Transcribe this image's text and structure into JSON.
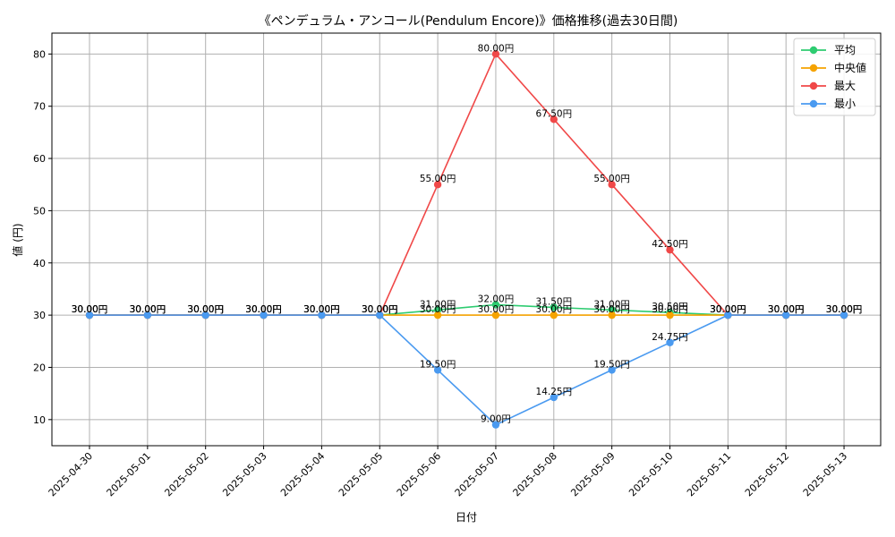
{
  "chart_data": {
    "type": "line",
    "title": "《ペンデュラム・アンコール(Pendulum Encore)》価格推移(過去30日間)",
    "xlabel": "日付",
    "ylabel": "値 (円)",
    "ylim": [
      5,
      84
    ],
    "yticks": [
      10,
      20,
      30,
      40,
      50,
      60,
      70,
      80
    ],
    "grid": true,
    "legend_position": "top-right",
    "value_suffix": "円",
    "categories": [
      "2025-04-30",
      "2025-05-01",
      "2025-05-02",
      "2025-05-03",
      "2025-05-04",
      "2025-05-05",
      "2025-05-06",
      "2025-05-07",
      "2025-05-08",
      "2025-05-09",
      "2025-05-10",
      "2025-05-11",
      "2025-05-12",
      "2025-05-13"
    ],
    "series": [
      {
        "name": "平均",
        "color": "#2ecc71",
        "values": [
          30,
          30,
          30,
          30,
          30,
          30,
          31,
          32,
          31.5,
          31,
          30.5,
          30,
          30,
          30
        ]
      },
      {
        "name": "中央値",
        "color": "#f5a300",
        "values": [
          30,
          30,
          30,
          30,
          30,
          30,
          30,
          30,
          30,
          30,
          30,
          30,
          30,
          30
        ]
      },
      {
        "name": "最大",
        "color": "#f04848",
        "values": [
          30,
          30,
          30,
          30,
          30,
          30,
          55,
          80,
          67.5,
          55,
          42.5,
          30,
          30,
          30
        ]
      },
      {
        "name": "最小",
        "color": "#4a9af0",
        "values": [
          30,
          30,
          30,
          30,
          30,
          30,
          19.5,
          9,
          14.25,
          19.5,
          24.75,
          30,
          30,
          30
        ]
      }
    ]
  }
}
